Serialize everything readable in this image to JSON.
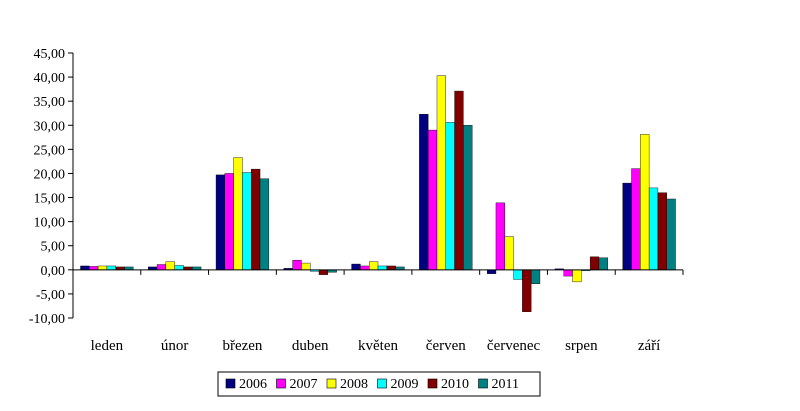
{
  "chart_data": {
    "type": "bar",
    "categories": [
      "leden",
      "únor",
      "březen",
      "duben",
      "květen",
      "červen",
      "červenec",
      "srpen",
      "září"
    ],
    "series": [
      {
        "name": "2006",
        "color": "#000080",
        "values": [
          0.8,
          0.6,
          19.7,
          0.3,
          1.2,
          32.3,
          -0.8,
          0.2,
          18.0
        ]
      },
      {
        "name": "2007",
        "color": "#ff00ff",
        "values": [
          0.7,
          1.1,
          20.0,
          2.0,
          0.8,
          29.0,
          13.9,
          -1.3,
          21.0
        ]
      },
      {
        "name": "2008",
        "color": "#ffff00",
        "values": [
          0.8,
          1.7,
          23.3,
          1.4,
          1.7,
          40.3,
          6.9,
          -2.5,
          28.1
        ]
      },
      {
        "name": "2009",
        "color": "#00ffff",
        "values": [
          0.8,
          0.9,
          20.2,
          -0.3,
          0.8,
          30.6,
          -2.0,
          -0.2,
          17.0
        ]
      },
      {
        "name": "2010",
        "color": "#800000",
        "values": [
          0.6,
          0.6,
          20.9,
          -1.0,
          0.8,
          37.1,
          -8.7,
          2.7,
          16.0
        ]
      },
      {
        "name": "2011",
        "color": "#008080",
        "values": [
          0.6,
          0.6,
          18.9,
          -0.5,
          0.6,
          30.0,
          -2.9,
          2.5,
          14.7
        ]
      }
    ],
    "ylim": [
      -10,
      45
    ],
    "yticks": [
      -10,
      -5,
      0,
      5,
      10,
      15,
      20,
      25,
      30,
      35,
      40,
      45
    ],
    "ytick_labels": [
      "-10,00",
      "-5,00",
      "0,00",
      "5,00",
      "10,00",
      "15,00",
      "20,00",
      "25,00",
      "30,00",
      "35,00",
      "40,00",
      "45,00"
    ],
    "grid": false,
    "legend_position": "bottom",
    "title": "",
    "xlabel": "",
    "ylabel": ""
  }
}
